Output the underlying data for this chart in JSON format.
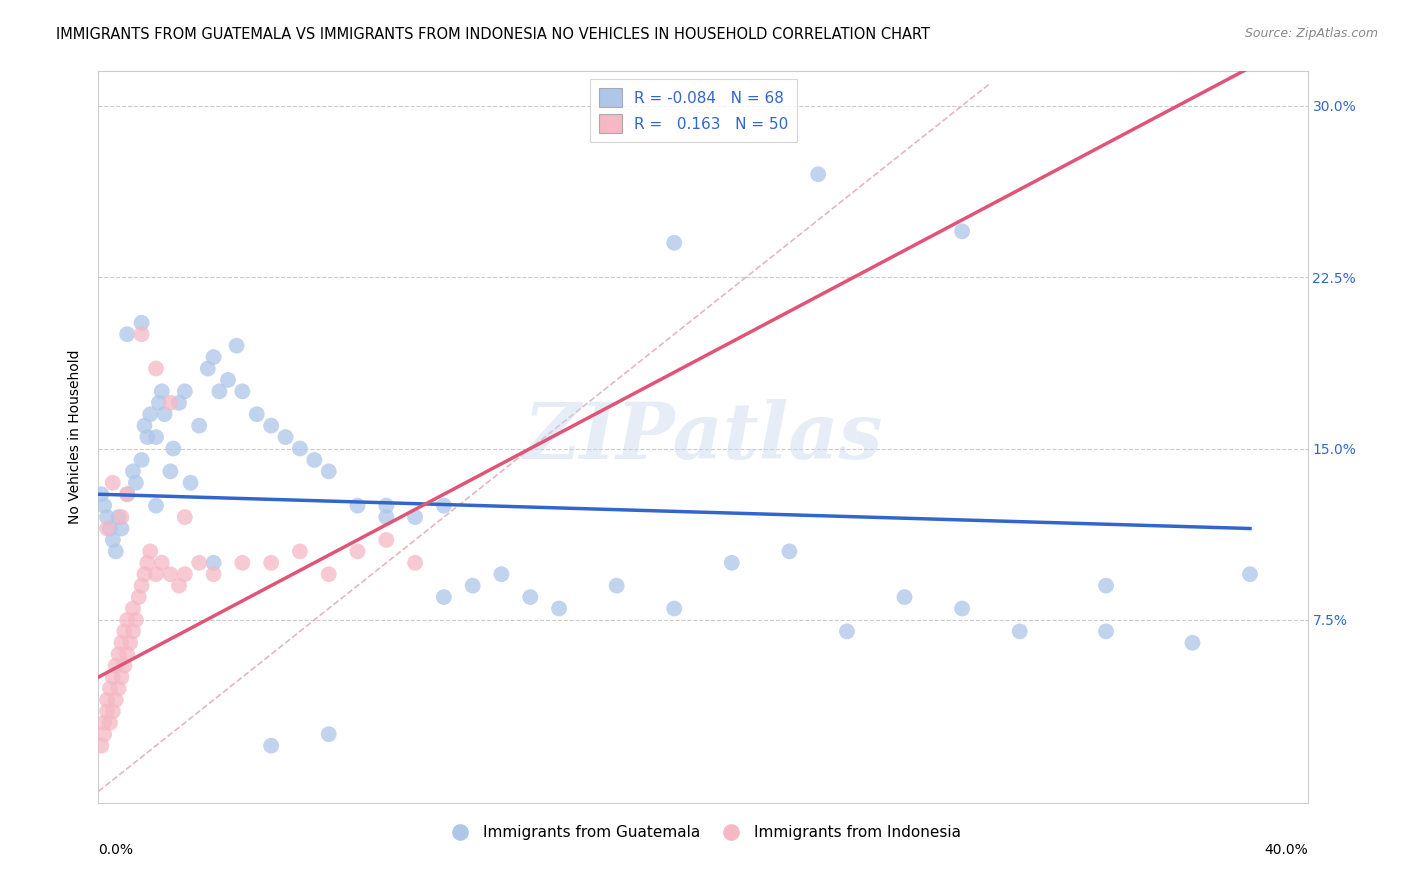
{
  "title": "IMMIGRANTS FROM GUATEMALA VS IMMIGRANTS FROM INDONESIA NO VEHICLES IN HOUSEHOLD CORRELATION CHART",
  "source": "Source: ZipAtlas.com",
  "ylabel": "No Vehicles in Household",
  "watermark": "ZIPatlas",
  "legend_r_blue": "-0.084",
  "legend_n_blue": "68",
  "legend_r_pink": "0.163",
  "legend_n_pink": "50",
  "blue_color": "#aec6e8",
  "pink_color": "#f5b8c4",
  "blue_line_color": "#3366cc",
  "pink_line_color": "#e05577",
  "diagonal_color": "#e0b0b8",
  "blue_line_x0": 0.0,
  "blue_line_y0": 0.13,
  "blue_line_x1": 0.4,
  "blue_line_y1": 0.115,
  "pink_line_x0": 0.0,
  "pink_line_y0": 0.05,
  "pink_line_x1": 0.12,
  "pink_line_y1": 0.13,
  "blue_scatter_x": [
    0.001,
    0.002,
    0.003,
    0.004,
    0.005,
    0.006,
    0.007,
    0.008,
    0.01,
    0.012,
    0.013,
    0.015,
    0.016,
    0.017,
    0.018,
    0.02,
    0.021,
    0.022,
    0.023,
    0.025,
    0.026,
    0.028,
    0.03,
    0.032,
    0.035,
    0.038,
    0.04,
    0.042,
    0.045,
    0.048,
    0.05,
    0.055,
    0.06,
    0.065,
    0.07,
    0.075,
    0.08,
    0.09,
    0.1,
    0.11,
    0.12,
    0.13,
    0.14,
    0.15,
    0.16,
    0.18,
    0.2,
    0.22,
    0.24,
    0.26,
    0.28,
    0.3,
    0.32,
    0.35,
    0.38,
    0.4,
    0.25,
    0.2,
    0.3,
    0.015,
    0.01,
    0.02,
    0.04,
    0.06,
    0.08,
    0.1,
    0.12,
    0.35
  ],
  "blue_scatter_y": [
    0.13,
    0.125,
    0.12,
    0.115,
    0.11,
    0.105,
    0.12,
    0.115,
    0.13,
    0.14,
    0.135,
    0.145,
    0.16,
    0.155,
    0.165,
    0.125,
    0.17,
    0.175,
    0.165,
    0.14,
    0.15,
    0.17,
    0.175,
    0.135,
    0.16,
    0.185,
    0.19,
    0.175,
    0.18,
    0.195,
    0.175,
    0.165,
    0.16,
    0.155,
    0.15,
    0.145,
    0.14,
    0.125,
    0.125,
    0.12,
    0.085,
    0.09,
    0.095,
    0.085,
    0.08,
    0.09,
    0.08,
    0.1,
    0.105,
    0.07,
    0.085,
    0.08,
    0.07,
    0.07,
    0.065,
    0.095,
    0.27,
    0.24,
    0.245,
    0.205,
    0.2,
    0.155,
    0.1,
    0.02,
    0.025,
    0.12,
    0.125,
    0.09
  ],
  "pink_scatter_x": [
    0.001,
    0.002,
    0.002,
    0.003,
    0.003,
    0.004,
    0.004,
    0.005,
    0.005,
    0.006,
    0.006,
    0.007,
    0.007,
    0.008,
    0.008,
    0.009,
    0.009,
    0.01,
    0.01,
    0.011,
    0.012,
    0.012,
    0.013,
    0.014,
    0.015,
    0.016,
    0.017,
    0.018,
    0.02,
    0.022,
    0.025,
    0.028,
    0.03,
    0.035,
    0.04,
    0.05,
    0.06,
    0.07,
    0.08,
    0.09,
    0.1,
    0.11,
    0.03,
    0.015,
    0.02,
    0.008,
    0.01,
    0.005,
    0.003,
    0.025
  ],
  "pink_scatter_y": [
    0.02,
    0.025,
    0.03,
    0.035,
    0.04,
    0.03,
    0.045,
    0.035,
    0.05,
    0.04,
    0.055,
    0.045,
    0.06,
    0.05,
    0.065,
    0.055,
    0.07,
    0.06,
    0.075,
    0.065,
    0.07,
    0.08,
    0.075,
    0.085,
    0.09,
    0.095,
    0.1,
    0.105,
    0.095,
    0.1,
    0.095,
    0.09,
    0.095,
    0.1,
    0.095,
    0.1,
    0.1,
    0.105,
    0.095,
    0.105,
    0.11,
    0.1,
    0.12,
    0.2,
    0.185,
    0.12,
    0.13,
    0.135,
    0.115,
    0.17
  ],
  "xlim": [
    0.0,
    0.42
  ],
  "ylim": [
    -0.005,
    0.315
  ],
  "xtick_left_label": "0.0%",
  "xtick_right_label": "40.0%",
  "ytick_vals": [
    0.075,
    0.15,
    0.225,
    0.3
  ],
  "ytick_labels": [
    "7.5%",
    "15.0%",
    "22.5%",
    "30.0%"
  ],
  "title_fontsize": 10.5,
  "tick_fontsize": 10,
  "legend_fontsize": 11,
  "ylabel_fontsize": 10
}
